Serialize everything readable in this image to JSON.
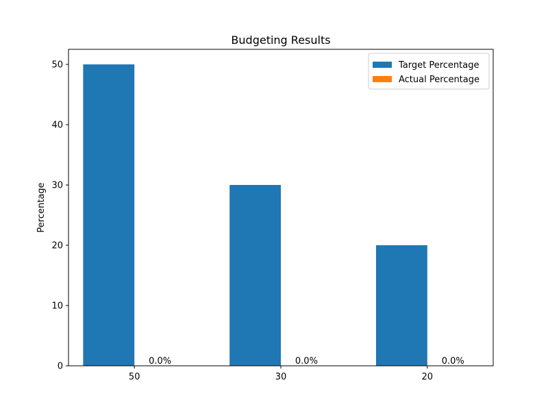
{
  "chart_data": {
    "type": "bar",
    "title": "Budgeting Results",
    "xlabel": "",
    "ylabel": "Percentage",
    "categories": [
      "50",
      "30",
      "20"
    ],
    "series": [
      {
        "name": "Target Percentage",
        "values": [
          50,
          30,
          20
        ],
        "color": "#1f77b4"
      },
      {
        "name": "Actual Percentage",
        "values": [
          0,
          0,
          0
        ],
        "color": "#ff7f0e"
      }
    ],
    "data_labels": {
      "series": "Actual Percentage",
      "labels": [
        "0.0%",
        "0.0%",
        "0.0%"
      ]
    },
    "ylim": [
      0,
      52.5
    ],
    "yticks": [
      0,
      10,
      20,
      30,
      40,
      50
    ],
    "grid": false,
    "legend_position": "top-right"
  }
}
